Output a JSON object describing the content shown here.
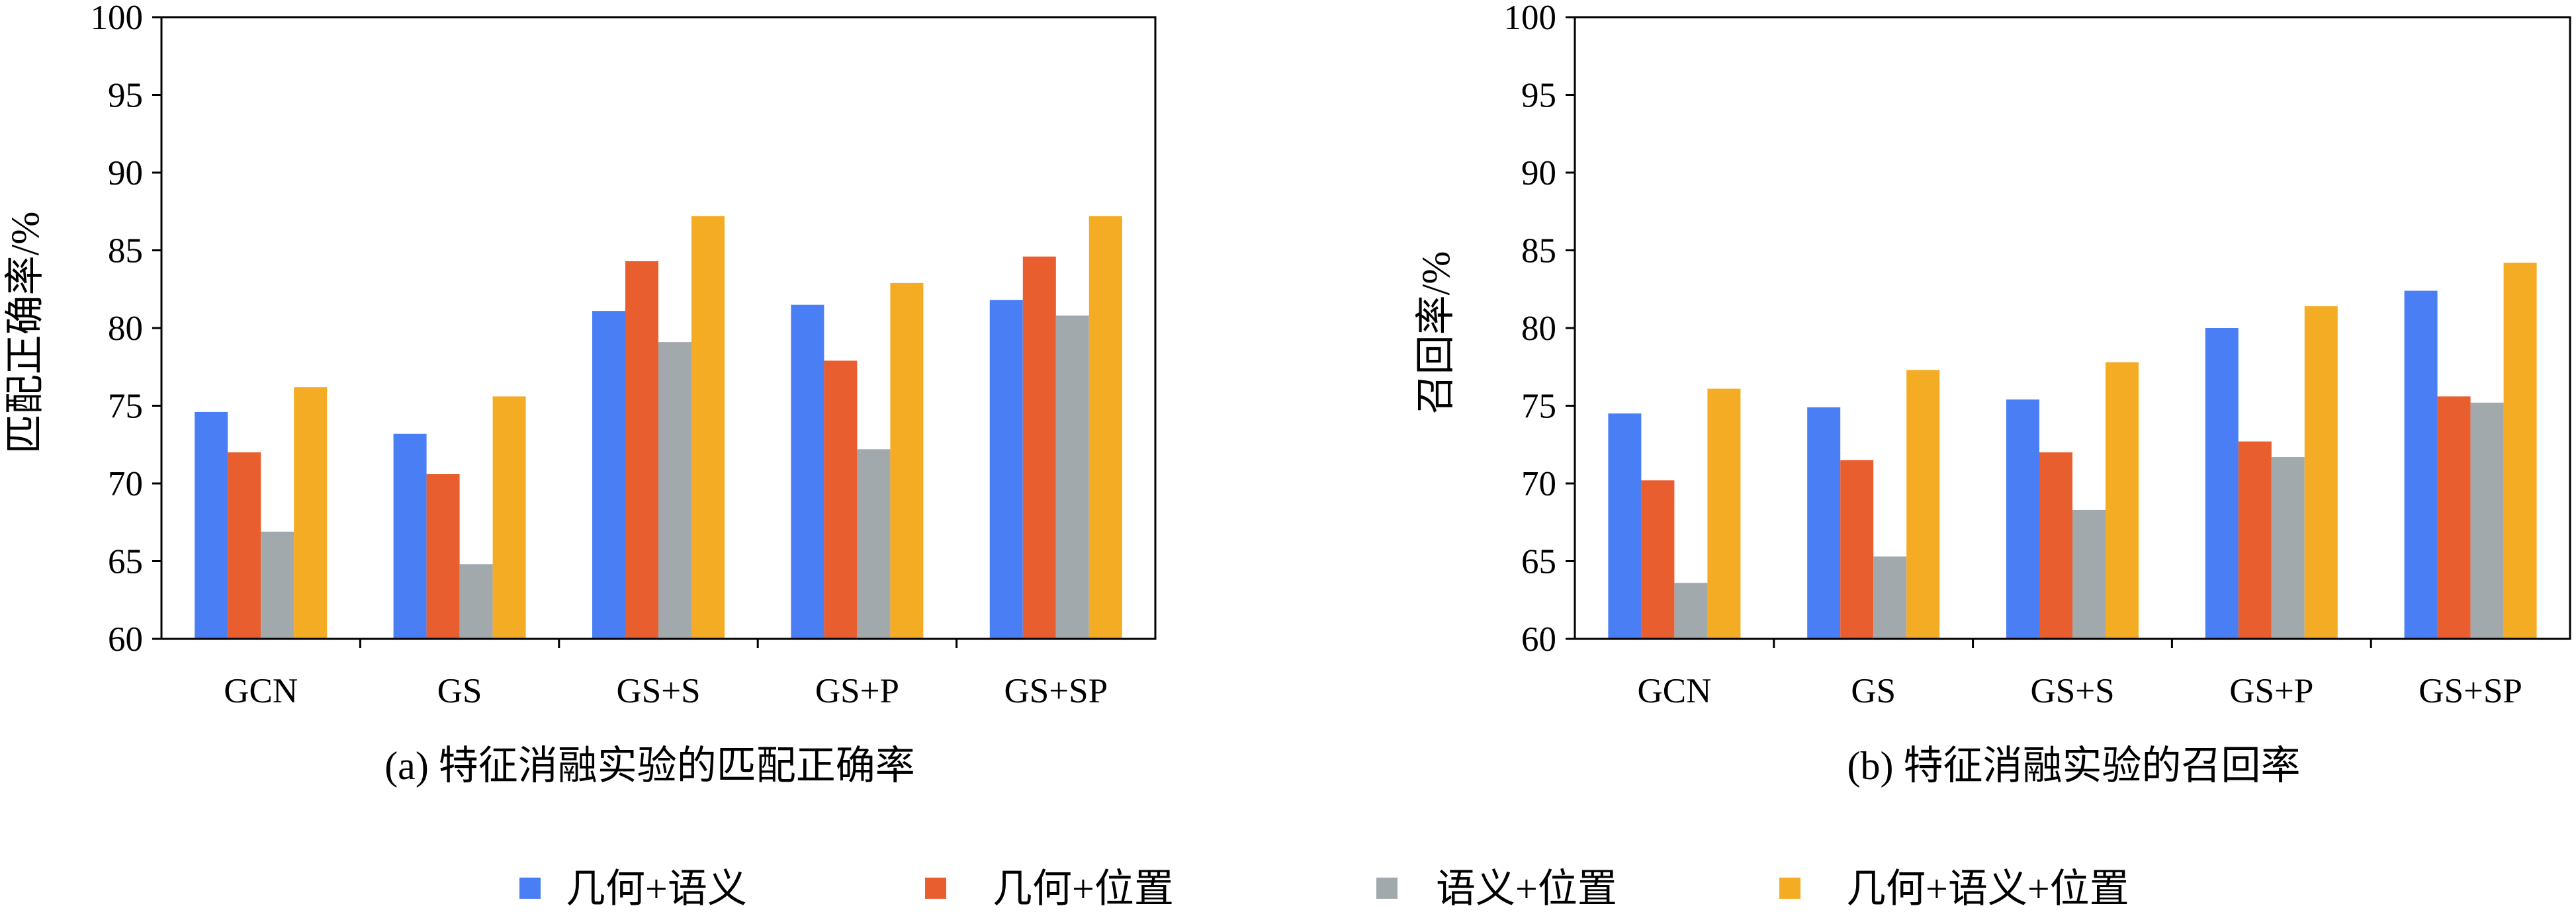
{
  "chart_data": [
    {
      "type": "bar",
      "title": "(a) 特征消融实验的匹配正确率",
      "xlabel": "",
      "ylabel": "匹配正确率/%",
      "ylim": [
        60,
        100
      ],
      "yticks": [
        60,
        65,
        70,
        75,
        80,
        85,
        90,
        95,
        100
      ],
      "categories": [
        "GCN",
        "GS",
        "GS+S",
        "GS+P",
        "GS+SP"
      ],
      "series": [
        {
          "name": "几何+语义",
          "values": [
            74.6,
            73.2,
            81.1,
            81.5,
            81.8
          ]
        },
        {
          "name": "几何+位置",
          "values": [
            72.0,
            70.6,
            84.3,
            77.9,
            84.6
          ]
        },
        {
          "name": "语义+位置",
          "values": [
            66.9,
            64.8,
            79.1,
            72.2,
            80.8
          ]
        },
        {
          "name": "几何+语义+位置",
          "values": [
            76.2,
            75.6,
            87.2,
            82.9,
            87.2
          ]
        }
      ],
      "grid": false
    },
    {
      "type": "bar",
      "title": "(b) 特征消融实验的召回率",
      "xlabel": "",
      "ylabel": "召回率/%",
      "ylim": [
        60,
        100
      ],
      "yticks": [
        60,
        65,
        70,
        75,
        80,
        85,
        90,
        95,
        100
      ],
      "categories": [
        "GCN",
        "GS",
        "GS+S",
        "GS+P",
        "GS+SP"
      ],
      "series": [
        {
          "name": "几何+语义",
          "values": [
            74.5,
            74.9,
            75.4,
            80.0,
            82.4
          ]
        },
        {
          "name": "几何+位置",
          "values": [
            70.2,
            71.5,
            72.0,
            72.7,
            75.6
          ]
        },
        {
          "name": "语义+位置",
          "values": [
            63.6,
            65.3,
            68.3,
            71.7,
            75.2
          ]
        },
        {
          "name": "几何+语义+位置",
          "values": [
            76.1,
            77.3,
            77.8,
            81.4,
            84.2
          ]
        }
      ],
      "grid": false
    }
  ],
  "legend": {
    "placement": "bottom",
    "items": [
      {
        "label": "几何+语义",
        "color": "#4A7EF5"
      },
      {
        "label": "几何+位置",
        "color": "#E85E2F"
      },
      {
        "label": "语义+位置",
        "color": "#A2A9AD"
      },
      {
        "label": "几何+语义+位置",
        "color": "#F5AC25"
      }
    ]
  }
}
